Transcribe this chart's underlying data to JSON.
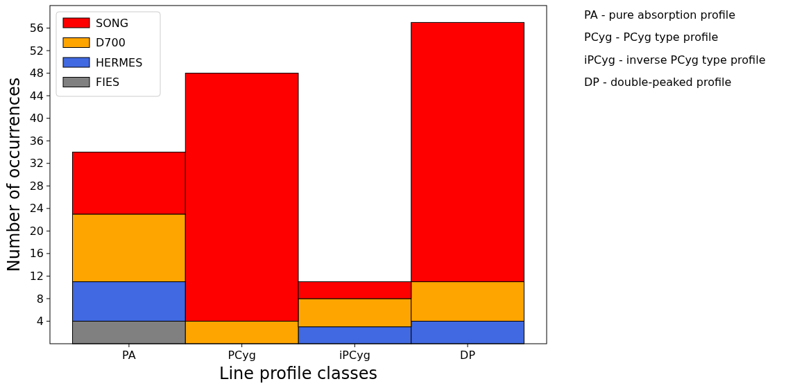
{
  "chart_data": {
    "type": "bar",
    "stacked": true,
    "xlabel": "Line profile classes",
    "ylabel": "Number of occurrences",
    "categories": [
      "PA",
      "PCyg",
      "iPCyg",
      "DP"
    ],
    "series": [
      {
        "name": "FIES",
        "color": "#808080",
        "values": [
          4,
          0,
          0,
          0
        ]
      },
      {
        "name": "HERMES",
        "color": "#4169e1",
        "values": [
          7,
          0,
          3,
          4
        ]
      },
      {
        "name": "D700",
        "color": "#ffa500",
        "values": [
          12,
          4,
          5,
          7
        ]
      },
      {
        "name": "SONG",
        "color": "#ff0000",
        "values": [
          11,
          44,
          3,
          46
        ]
      }
    ],
    "ylim": [
      0,
      60
    ],
    "yticks": [
      4,
      8,
      12,
      16,
      20,
      24,
      28,
      32,
      36,
      40,
      44,
      48,
      52,
      56
    ],
    "legend": "top left",
    "annotations": [
      "PA - pure absorption profile",
      "PCyg - PCyg type profile",
      "iPCyg - inverse PCyg type profile",
      "DP - double-peaked profile"
    ]
  }
}
